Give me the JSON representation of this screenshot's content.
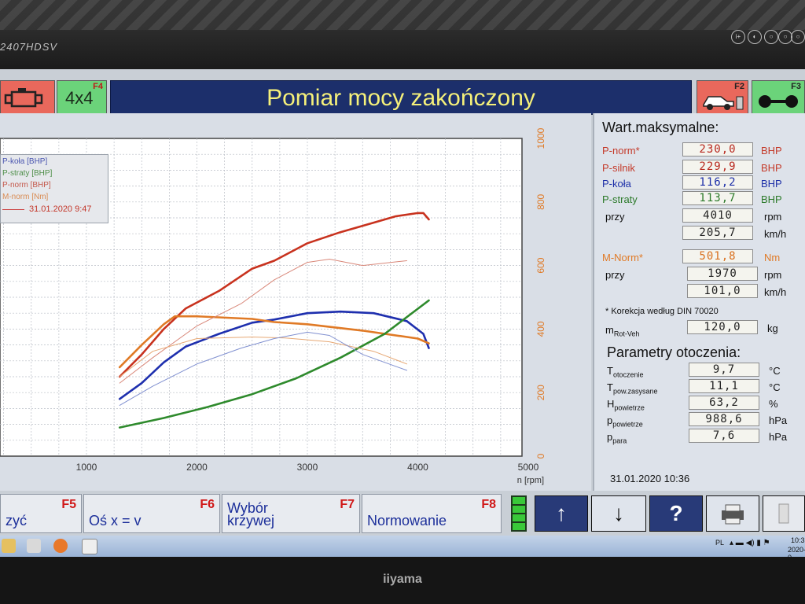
{
  "monitor": {
    "model": "2407HDSV",
    "brand": "iiyama",
    "osd_buttons": [
      "i+",
      "◐",
      "○",
      "○",
      "○"
    ]
  },
  "header": {
    "title": "Pomiar mocy zakończony",
    "f4_key": "F4",
    "f4_label": "4x4",
    "f2_key": "F2",
    "f3_key": "F3"
  },
  "chart_data": {
    "type": "line",
    "xlabel": "n [rpm]",
    "x_ticks": [
      "1000",
      "2000",
      "3000",
      "4000",
      "5000"
    ],
    "xlim": [
      0,
      5000
    ],
    "y_right_ticks": [
      "0",
      "200",
      "400",
      "600",
      "800",
      "1000"
    ],
    "ylim_right": [
      0,
      1000
    ],
    "grid": true,
    "legend_items": [
      "P-koła [BHP]",
      "P-straty [BHP]",
      "P-norm [BHP]",
      "M-norm [Nm]",
      "31.01.2020 9:47"
    ],
    "legend_placement": "top-left",
    "series": [
      {
        "name": "P-norm [BHP]",
        "color": "#c8321e",
        "x": [
          1300,
          1500,
          1700,
          1900,
          2200,
          2500,
          2700,
          3000,
          3300,
          3600,
          3800,
          4000,
          4050,
          4100
        ],
        "y": [
          250,
          320,
          400,
          465,
          520,
          590,
          615,
          670,
          705,
          735,
          755,
          765,
          765,
          745
        ]
      },
      {
        "name": "P-koła [BHP]",
        "color": "#1e2fae",
        "x": [
          1300,
          1500,
          1700,
          1900,
          2200,
          2500,
          2700,
          3000,
          3300,
          3600,
          3900,
          4050,
          4100
        ],
        "y": [
          180,
          230,
          295,
          345,
          385,
          420,
          430,
          450,
          455,
          450,
          425,
          385,
          340
        ]
      },
      {
        "name": "M-norm [Nm]",
        "color": "#e07a26",
        "x": [
          1300,
          1500,
          1700,
          1800,
          2000,
          2500,
          2700,
          3000,
          3500,
          4000,
          4100
        ],
        "y": [
          280,
          350,
          415,
          440,
          440,
          432,
          422,
          415,
          395,
          370,
          355
        ]
      },
      {
        "name": "P-straty [BHP]",
        "color": "#2e8a2c",
        "x": [
          1300,
          1700,
          2100,
          2500,
          2900,
          3300,
          3700,
          4100
        ],
        "y": [
          90,
          120,
          155,
          195,
          245,
          310,
          385,
          490
        ]
      },
      {
        "name": "P-norm 31.01.2020 9:47",
        "color": "#d9887a",
        "thin": true,
        "x": [
          1300,
          1600,
          2000,
          2400,
          2700,
          3000,
          3200,
          3500,
          3900
        ],
        "y": [
          230,
          310,
          410,
          480,
          555,
          610,
          620,
          600,
          615
        ]
      },
      {
        "name": "M-norm 31.01.2020 9:47",
        "color": "#e7a874",
        "thin": true,
        "x": [
          1300,
          1600,
          2000,
          2500,
          2800,
          3200,
          3600,
          3900
        ],
        "y": [
          250,
          330,
          370,
          375,
          372,
          360,
          330,
          290
        ]
      },
      {
        "name": "P-koła 31.01.2020 9:47",
        "color": "#8090d0",
        "thin": true,
        "x": [
          1300,
          1600,
          2000,
          2400,
          2700,
          3000,
          3200,
          3500,
          3900
        ],
        "y": [
          160,
          220,
          290,
          340,
          370,
          390,
          380,
          320,
          270
        ]
      }
    ]
  },
  "right_panel": {
    "max_title": "Wart.maksymalne:",
    "rows": [
      {
        "label": "P-norm*",
        "value": "230,0",
        "unit": "BHP"
      },
      {
        "label": "P-silnik",
        "value": "229,9",
        "unit": "BHP"
      },
      {
        "label": "P-koła",
        "value": "116,2",
        "unit": "BHP"
      },
      {
        "label": "P-straty",
        "value": "113,7",
        "unit": "BHP"
      },
      {
        "label": "przy",
        "value": "4010",
        "unit": "rpm"
      },
      {
        "label": "",
        "value": "205,7",
        "unit": "km/h"
      }
    ],
    "mnorm_rows": [
      {
        "label": "M-Norm*",
        "value": "501,8",
        "unit": "Nm"
      },
      {
        "label": "przy",
        "value": "1970",
        "unit": "rpm"
      },
      {
        "label": "",
        "value": "101,0",
        "unit": "km/h"
      }
    ],
    "correction_note": "* Korekcja według DIN 70020",
    "mrot_label": "m",
    "mrot_sub": "Rot-Veh",
    "mrot_value": "120,0",
    "mrot_unit": "kg",
    "env_title": "Parametry otoczenia:",
    "env_rows": [
      {
        "main": "T",
        "sub": "otoczenie",
        "value": "9,7",
        "unit": "°C"
      },
      {
        "main": "T",
        "sub": "pow.zasysane",
        "value": "11,1",
        "unit": "°C"
      },
      {
        "main": "H",
        "sub": "powietrze",
        "value": "63,2",
        "unit": "%"
      },
      {
        "main": "p",
        "sub": "powietrze",
        "value": "988,6",
        "unit": "hPa"
      },
      {
        "main": "p",
        "sub": "para",
        "value": "7,6",
        "unit": "hPa"
      }
    ],
    "datetime": "31.01.2020   10:36"
  },
  "fkeys": {
    "f5": {
      "key": "F5",
      "label": "zyć"
    },
    "f6": {
      "key": "F6",
      "label": "Oś x = v"
    },
    "f7": {
      "key": "F7",
      "label1": "Wybór",
      "label2": "krzywej"
    },
    "f8": {
      "key": "F8",
      "label": "Normowanie"
    }
  },
  "nav": {
    "up": "↑",
    "down": "↓",
    "help": "?"
  },
  "taskbar": {
    "lang": "PL",
    "clock": "10:3",
    "date": "2020-0"
  }
}
